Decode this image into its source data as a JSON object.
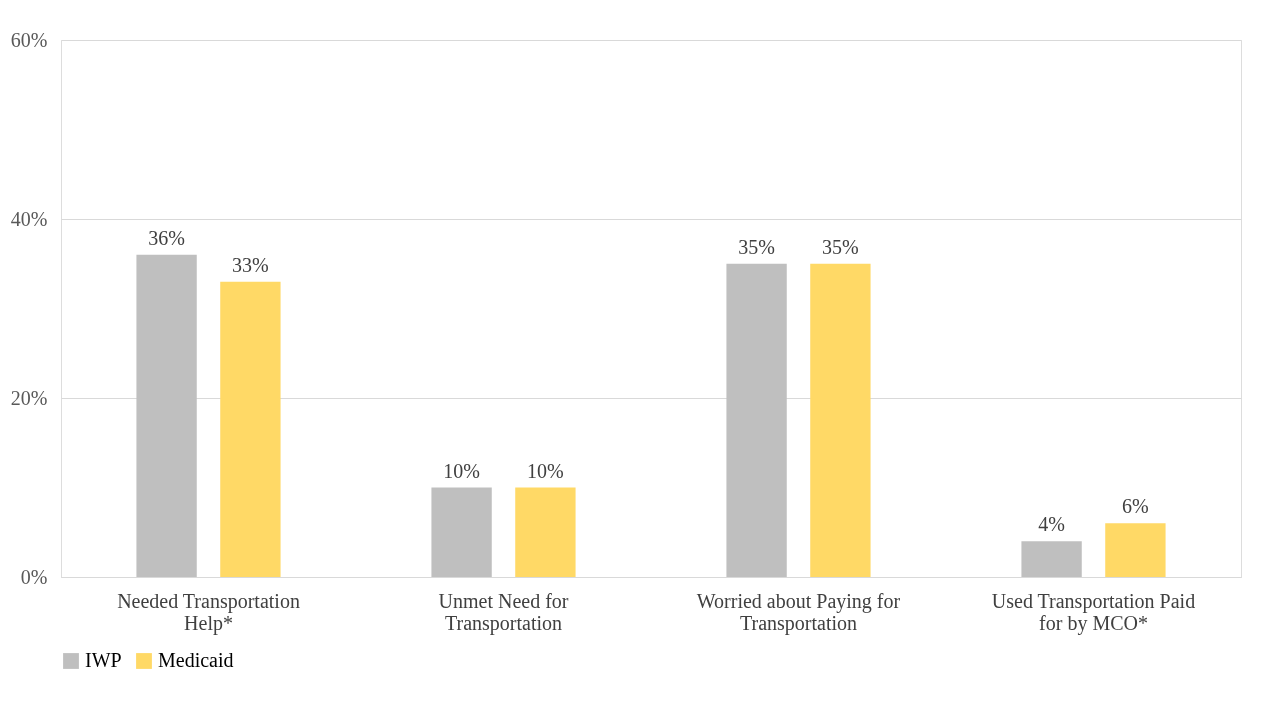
{
  "chart_data": {
    "type": "bar",
    "categories": [
      "Needed Transportation Help*",
      "Unmet Need for Transportation",
      "Worried about Paying for Transportation",
      "Used Transportation Paid for by MCO*"
    ],
    "series": [
      {
        "name": "IWP",
        "color": "#bfbfbf",
        "values": [
          36,
          10,
          35,
          4
        ],
        "value_labels": [
          "36%",
          "10%",
          "35%",
          "4%"
        ]
      },
      {
        "name": "Medicaid",
        "color": "#ffd966",
        "values": [
          33,
          10,
          35,
          6
        ],
        "value_labels": [
          "33%",
          "10%",
          "35%",
          "6%"
        ]
      }
    ],
    "ylim": [
      0,
      60
    ],
    "yticks": [
      {
        "value": 0,
        "label": "0%"
      },
      {
        "value": 20,
        "label": "20%"
      },
      {
        "value": 40,
        "label": "40%"
      },
      {
        "value": 60,
        "label": "60%"
      }
    ],
    "grid": "y",
    "legend": "bottom"
  }
}
